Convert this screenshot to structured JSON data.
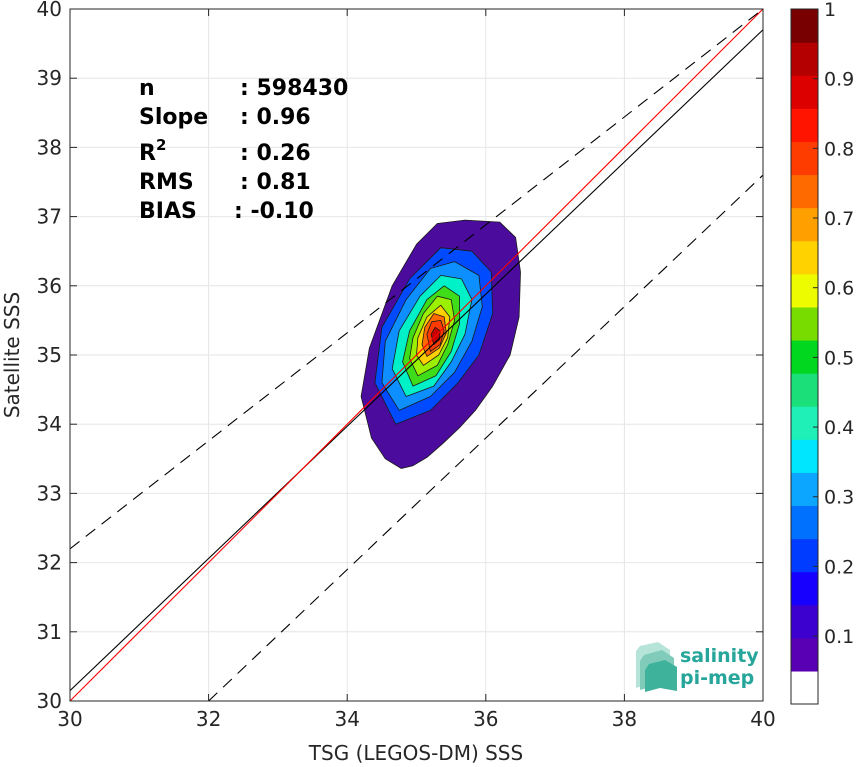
{
  "chart_data": {
    "type": "contour_density_scatter",
    "xlabel": "TSG (LEGOS-DM) SSS",
    "ylabel": "Satellite SSS",
    "xlim": [
      30,
      40
    ],
    "ylim": [
      30,
      40
    ],
    "x_ticks": [
      "30",
      "32",
      "34",
      "36",
      "38",
      "40"
    ],
    "y_ticks": [
      "30",
      "31",
      "32",
      "33",
      "34",
      "35",
      "36",
      "37",
      "38",
      "39",
      "40"
    ],
    "grid": true,
    "stats": [
      {
        "label": "n",
        "value": ": 598430"
      },
      {
        "label": "Slope",
        "value": ": 0.96"
      },
      {
        "label": "R",
        "label_sup": "2",
        "value": ": 0.26"
      },
      {
        "label": "RMS",
        "value": ": 0.81"
      },
      {
        "label": "BIAS",
        "value": ": -0.10"
      }
    ],
    "lines": [
      {
        "role": "one-to-one",
        "color": "#000000",
        "style": "solid",
        "points": [
          [
            30,
            30.15
          ],
          [
            40,
            39.7
          ]
        ]
      },
      {
        "role": "regression",
        "color": "#ff0000",
        "style": "solid",
        "points": [
          [
            30,
            30.0
          ],
          [
            40,
            40.0
          ]
        ]
      },
      {
        "role": "upper-bound",
        "color": "#000000",
        "style": "dashed",
        "points": [
          [
            30,
            32.2
          ],
          [
            40,
            40.0
          ]
        ]
      },
      {
        "role": "lower-bound",
        "color": "#000000",
        "style": "dashed",
        "points": [
          [
            32.0,
            30.0
          ],
          [
            40,
            37.6
          ]
        ]
      }
    ],
    "density": {
      "center": [
        35.35,
        35.25
      ],
      "colors": [
        "#4b0c9e",
        "#2300d6",
        "#004bff",
        "#0d8fff",
        "#00c6ff",
        "#00f0c8",
        "#2ee07a",
        "#3fdc1a",
        "#9bf000",
        "#f5f000",
        "#ffd000",
        "#ff9c00",
        "#ff6a00",
        "#ff3a00",
        "#f01010",
        "#c80000"
      ],
      "levels": [
        {
          "level": 0.05,
          "poly": [
            [
              34.78,
              33.36
            ],
            [
              34.95,
              33.4
            ],
            [
              35.15,
              33.52
            ],
            [
              35.38,
              33.72
            ],
            [
              35.62,
              33.95
            ],
            [
              35.85,
              34.2
            ],
            [
              36.1,
              34.55
            ],
            [
              36.35,
              35.0
            ],
            [
              36.48,
              35.55
            ],
            [
              36.5,
              36.2
            ],
            [
              36.43,
              36.7
            ],
            [
              36.2,
              36.92
            ],
            [
              35.7,
              36.95
            ],
            [
              35.3,
              36.9
            ],
            [
              35.0,
              36.6
            ],
            [
              34.65,
              36.0
            ],
            [
              34.32,
              35.1
            ],
            [
              34.2,
              34.4
            ],
            [
              34.35,
              33.8
            ],
            [
              34.55,
              33.5
            ]
          ]
        },
        {
          "level": 0.15,
          "poly": [
            [
              34.7,
              34.0
            ],
            [
              35.2,
              34.2
            ],
            [
              35.6,
              34.6
            ],
            [
              35.9,
              35.0
            ],
            [
              36.1,
              35.6
            ],
            [
              36.08,
              36.2
            ],
            [
              35.8,
              36.5
            ],
            [
              35.35,
              36.55
            ],
            [
              34.9,
              36.1
            ],
            [
              34.5,
              35.4
            ],
            [
              34.4,
              34.6
            ]
          ]
        },
        {
          "level": 0.25,
          "poly": [
            [
              34.75,
              34.2
            ],
            [
              35.2,
              34.4
            ],
            [
              35.55,
              34.75
            ],
            [
              35.8,
              35.2
            ],
            [
              35.95,
              35.7
            ],
            [
              35.9,
              36.15
            ],
            [
              35.55,
              36.35
            ],
            [
              35.2,
              36.25
            ],
            [
              34.85,
              35.8
            ],
            [
              34.55,
              35.2
            ],
            [
              34.5,
              34.6
            ]
          ]
        },
        {
          "level": 0.35,
          "poly": [
            [
              34.85,
              34.4
            ],
            [
              35.25,
              34.55
            ],
            [
              35.5,
              34.9
            ],
            [
              35.7,
              35.3
            ],
            [
              35.8,
              35.8
            ],
            [
              35.65,
              36.1
            ],
            [
              35.35,
              36.15
            ],
            [
              35.05,
              35.85
            ],
            [
              34.75,
              35.35
            ],
            [
              34.65,
              34.8
            ]
          ]
        },
        {
          "level": 0.45,
          "poly": [
            [
              34.95,
              34.55
            ],
            [
              35.28,
              34.7
            ],
            [
              35.5,
              35.05
            ],
            [
              35.62,
              35.45
            ],
            [
              35.62,
              35.85
            ],
            [
              35.4,
              36.0
            ],
            [
              35.15,
              35.8
            ],
            [
              34.9,
              35.35
            ],
            [
              34.8,
              34.9
            ]
          ]
        },
        {
          "level": 0.55,
          "poly": [
            [
              35.02,
              34.7
            ],
            [
              35.3,
              34.85
            ],
            [
              35.45,
              35.15
            ],
            [
              35.55,
              35.5
            ],
            [
              35.5,
              35.8
            ],
            [
              35.3,
              35.85
            ],
            [
              35.1,
              35.6
            ],
            [
              34.95,
              35.25
            ],
            [
              34.9,
              34.95
            ]
          ]
        },
        {
          "level": 0.65,
          "poly": [
            [
              35.1,
              34.85
            ],
            [
              35.32,
              35.0
            ],
            [
              35.45,
              35.25
            ],
            [
              35.48,
              35.55
            ],
            [
              35.35,
              35.72
            ],
            [
              35.15,
              35.55
            ],
            [
              35.02,
              35.25
            ],
            [
              35.0,
              35.0
            ]
          ]
        },
        {
          "level": 0.75,
          "poly": [
            [
              35.15,
              34.98
            ],
            [
              35.33,
              35.1
            ],
            [
              35.43,
              35.32
            ],
            [
              35.4,
              35.55
            ],
            [
              35.25,
              35.6
            ],
            [
              35.12,
              35.4
            ],
            [
              35.08,
              35.15
            ]
          ]
        },
        {
          "level": 0.85,
          "poly": [
            [
              35.2,
              35.05
            ],
            [
              35.34,
              35.15
            ],
            [
              35.4,
              35.35
            ],
            [
              35.35,
              35.5
            ],
            [
              35.22,
              35.48
            ],
            [
              35.15,
              35.3
            ]
          ]
        },
        {
          "level": 0.95,
          "poly": [
            [
              35.25,
              35.15
            ],
            [
              35.33,
              35.22
            ],
            [
              35.34,
              35.35
            ],
            [
              35.27,
              35.4
            ],
            [
              35.21,
              35.3
            ]
          ]
        }
      ]
    },
    "colorbar": {
      "ticks": [
        "0.1",
        "0.2",
        "0.3",
        "0.4",
        "0.5",
        "0.6",
        "0.7",
        "0.8",
        "0.9",
        "1"
      ],
      "tick_values": [
        0.1,
        0.2,
        0.3,
        0.4,
        0.5,
        0.6,
        0.7,
        0.8,
        0.9,
        1.0
      ],
      "colors": [
        "#ffffff",
        "#5a00b4",
        "#3c00cf",
        "#1800ff",
        "#003cff",
        "#0070ff",
        "#0ca5ff",
        "#00e6ff",
        "#1ef0b8",
        "#1be07a",
        "#00d71e",
        "#78dc00",
        "#eefc00",
        "#ffd200",
        "#ff9f00",
        "#ff6a00",
        "#ff3c00",
        "#ff1400",
        "#dc0000",
        "#b40000",
        "#780000"
      ],
      "range": [
        0.05,
        1.0
      ]
    }
  },
  "logo": {
    "line1": "salinity",
    "line2": "pi-mep",
    "color": "#26a69a"
  }
}
